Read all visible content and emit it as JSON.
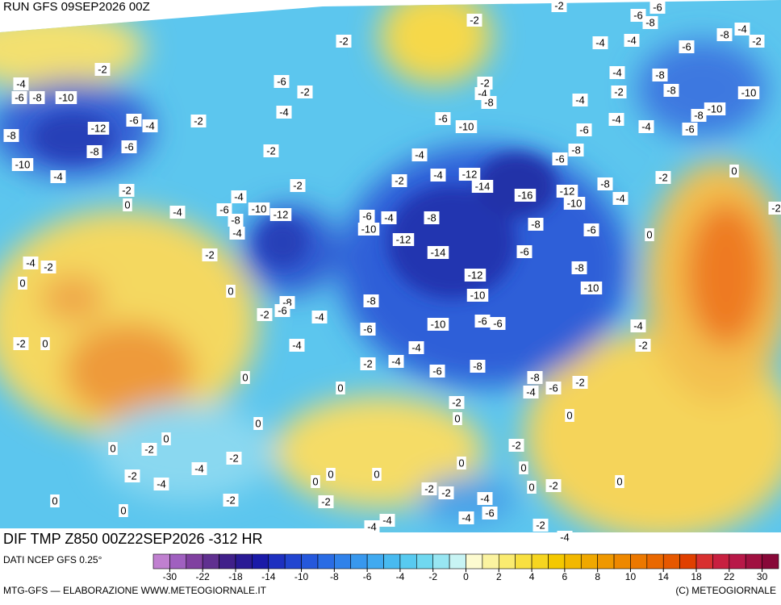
{
  "header": {
    "run": "RUN GFS 09SEP2026 00Z"
  },
  "map": {
    "title": "DIF TMP Z850 00Z22SEP2026 -312 HR",
    "contour_labels": [
      -2,
      -4,
      -6,
      -8,
      -10,
      -8,
      -12,
      -6,
      -4,
      -8,
      -6,
      -10,
      -4,
      -2,
      -2,
      0,
      -4,
      -6,
      -2,
      -4,
      -2,
      -2,
      -4,
      -6,
      -8,
      -4,
      -10,
      -12,
      -2,
      0,
      -4,
      -2,
      0,
      -2,
      0,
      -8,
      -6,
      -2,
      -4,
      -4,
      -2,
      -2,
      -4,
      -8,
      -6,
      -10,
      -4,
      -2,
      -4,
      -12,
      -14,
      -16,
      -12,
      -10,
      -8,
      -4,
      -2,
      -6,
      -4,
      -8,
      -10,
      -12,
      -14,
      -8,
      -6,
      -6,
      -12,
      -8,
      -10,
      -10,
      -8,
      -6,
      -10,
      -6,
      -6,
      -2,
      -4,
      -4,
      -6,
      -8,
      -8,
      -4,
      -6,
      -2,
      -4,
      -2,
      0,
      0,
      -2,
      0,
      0,
      0,
      -2,
      0,
      0,
      -2,
      -4,
      -2,
      -4,
      0,
      0,
      0,
      0,
      0,
      0,
      -2,
      0,
      -2,
      -2,
      -2,
      -4,
      -6,
      -4,
      -2,
      0,
      0,
      -2,
      -4,
      -4,
      -2,
      -4,
      -4,
      -4,
      -2,
      -6,
      -8,
      -6,
      -4,
      -4,
      -6,
      -8,
      -10,
      -10,
      -8,
      -8,
      -6,
      -4,
      -4,
      -6,
      -8,
      -6,
      -2,
      -8,
      -4,
      -2,
      -2,
      0,
      0,
      -2
    ]
  },
  "colorbar": {
    "source": "DATI NCEP GFS 0.25°",
    "ticks": [
      -30,
      -22,
      -18,
      -14,
      -10,
      -8,
      -6,
      -4,
      -2,
      0,
      2,
      4,
      6,
      8,
      10,
      14,
      18,
      22,
      30
    ],
    "colors": [
      "#c080d0",
      "#a060c0",
      "#8040a0",
      "#603090",
      "#40208a",
      "#2a1a95",
      "#1a1aa8",
      "#1e30c0",
      "#2245d0",
      "#2558dc",
      "#2a6ce4",
      "#3082ea",
      "#3898ee",
      "#40aaf0",
      "#48baf0",
      "#58caf0",
      "#70d8f0",
      "#98e6f2",
      "#c8f4f4",
      "#fdfbd0",
      "#fbf3a0",
      "#faeb70",
      "#f8e040",
      "#f6d520",
      "#f4c800",
      "#f2b800",
      "#f0a800",
      "#ef9800",
      "#ee8800",
      "#ec7800",
      "#ea6800",
      "#e65800",
      "#e04000",
      "#d83030",
      "#c82040",
      "#b81848",
      "#a01040",
      "#880838"
    ]
  },
  "footer": {
    "credit": "MTG-GFS — ELABORAZIONE WWW.METEOGIORNALE.IT",
    "copyright": "(C) METEOGIORNALE"
  }
}
